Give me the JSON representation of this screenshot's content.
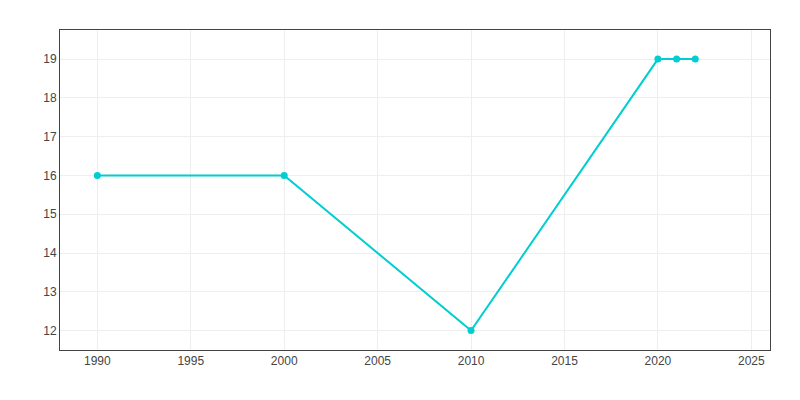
{
  "chart_data": {
    "type": "line",
    "x": [
      1990,
      2000,
      2010,
      2020,
      2021,
      2022
    ],
    "values": [
      16,
      16,
      12,
      19,
      19,
      19
    ],
    "color": "#00CED1",
    "marker": "circle",
    "xlim": [
      1988,
      2026
    ],
    "ylim": [
      11.5,
      19.75
    ],
    "xticks": [
      1990,
      1995,
      2000,
      2005,
      2010,
      2015,
      2020,
      2025
    ],
    "yticks": [
      12,
      13,
      14,
      15,
      16,
      17,
      18,
      19
    ],
    "grid": true
  }
}
